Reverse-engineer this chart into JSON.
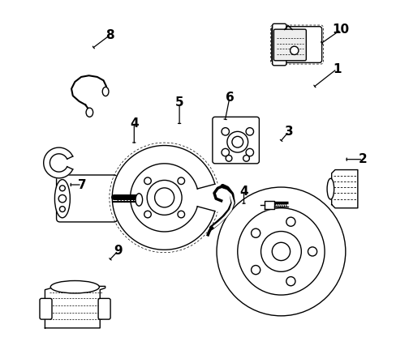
{
  "background_color": "#ffffff",
  "line_color": "#000000",
  "line_width": 1.0,
  "label_fontsize": 11,
  "label_fontweight": "bold"
}
